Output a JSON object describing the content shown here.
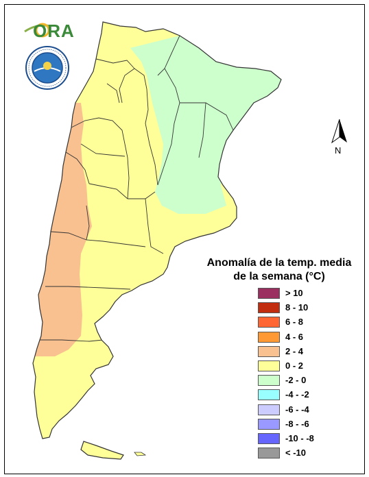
{
  "logo": {
    "text": "ORA"
  },
  "seal": {
    "label": "seal-logo"
  },
  "north_arrow": {
    "label": "N"
  },
  "legend": {
    "title_line1": "Anomalía de la temp. media",
    "title_line2": "de la semana (°C)",
    "items": [
      {
        "label": "> 10",
        "color": "#9b3060"
      },
      {
        "label": "8 - 10",
        "color": "#c22d10"
      },
      {
        "label": "6 - 8",
        "color": "#ff6633"
      },
      {
        "label": "4 - 6",
        "color": "#ff9933"
      },
      {
        "label": "2 - 4",
        "color": "#f9c090"
      },
      {
        "label": "0 - 2",
        "color": "#ffff99"
      },
      {
        "label": "-2 - 0",
        "color": "#ccffcc"
      },
      {
        "label": "-4 - -2",
        "color": "#99ffff"
      },
      {
        "label": "-6 - -4",
        "color": "#ccccff"
      },
      {
        "label": "-8 - -6",
        "color": "#9999ff"
      },
      {
        "label": "-10 - -8",
        "color": "#6666ff"
      },
      {
        "label": "< -10",
        "color": "#999999"
      }
    ]
  },
  "map_colors": {
    "warm_west": "#f9c090",
    "neutral": "#ffff99",
    "cool_northeast": "#ccffcc",
    "border": "#333333"
  }
}
